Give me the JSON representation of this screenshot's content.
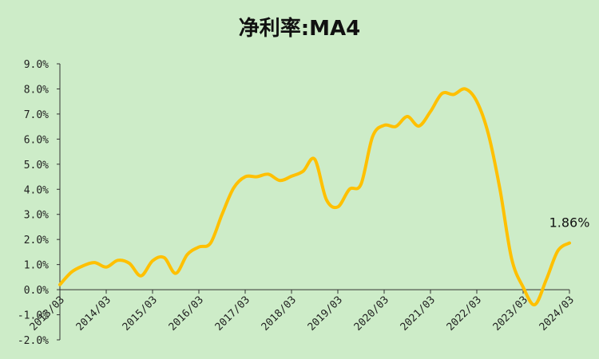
{
  "chart_data": {
    "type": "line",
    "title": "净利率:MA4",
    "xlabel": "",
    "ylabel": "",
    "ylim": [
      -2.0,
      9.0
    ],
    "y_tick_values": [
      -2.0,
      -1.0,
      0.0,
      1.0,
      2.0,
      3.0,
      4.0,
      5.0,
      6.0,
      7.0,
      8.0,
      9.0
    ],
    "y_tick_labels": [
      "-2.0%",
      "-1.0%",
      "0.0%",
      "1.0%",
      "2.0%",
      "3.0%",
      "4.0%",
      "5.0%",
      "6.0%",
      "7.0%",
      "8.0%",
      "9.0%"
    ],
    "x_tick_labels": [
      "2013/03",
      "2014/03",
      "2015/03",
      "2016/03",
      "2017/03",
      "2018/03",
      "2019/03",
      "2020/03",
      "2021/03",
      "2022/03",
      "2023/03",
      "2024/03"
    ],
    "grid": false,
    "legend": "none",
    "line_color": "#ffc000",
    "series": [
      {
        "x": [
          "2013/03",
          "2013/06",
          "2013/09",
          "2013/12",
          "2014/03",
          "2014/06",
          "2014/09",
          "2014/12",
          "2015/03",
          "2015/06",
          "2015/09",
          "2015/12",
          "2016/03",
          "2016/06",
          "2016/09",
          "2016/12",
          "2017/03",
          "2017/06",
          "2017/09",
          "2017/12",
          "2018/03",
          "2018/06",
          "2018/09",
          "2018/12",
          "2019/03",
          "2019/06",
          "2019/09",
          "2019/12",
          "2020/03",
          "2020/06",
          "2020/09",
          "2020/12",
          "2021/03",
          "2021/06",
          "2021/09",
          "2021/12",
          "2022/03",
          "2022/06",
          "2022/09",
          "2022/12",
          "2023/03",
          "2023/06",
          "2023/09",
          "2023/12",
          "2024/03"
        ],
        "values": [
          0.2,
          0.7,
          0.95,
          1.08,
          0.9,
          1.17,
          1.05,
          0.55,
          1.15,
          1.28,
          0.65,
          1.4,
          1.7,
          1.85,
          3.0,
          4.05,
          4.5,
          4.5,
          4.6,
          4.35,
          4.52,
          4.72,
          5.2,
          3.6,
          3.3,
          4.0,
          4.2,
          6.1,
          6.55,
          6.5,
          6.9,
          6.52,
          7.1,
          7.82,
          7.78,
          8.0,
          7.5,
          6.2,
          4.0,
          1.25,
          0.1,
          -0.6,
          0.4,
          1.55,
          1.86
        ]
      }
    ],
    "data_label": "1.86%"
  }
}
